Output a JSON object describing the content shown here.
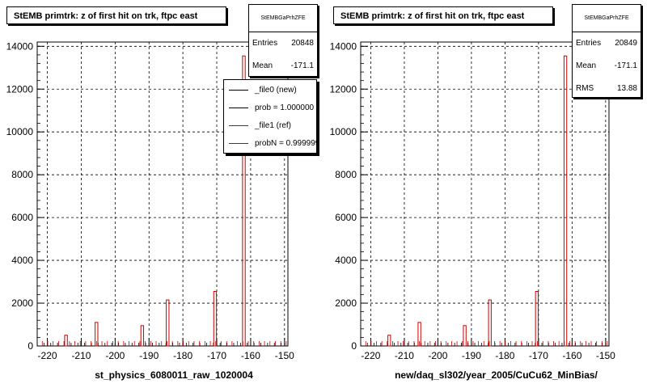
{
  "colors": {
    "new": "#000000",
    "ref": "#cc0000"
  },
  "chart_data": [
    {
      "type": "bar",
      "title": "StEMB primtrk: z of first hit on trk, ftpc east",
      "xlabel": "st_physics_6080011_raw_1020004",
      "ylabel": "",
      "xlim": [
        -223,
        -149
      ],
      "ylim": [
        0,
        14200
      ],
      "xticks": [
        -220,
        -210,
        -200,
        -190,
        -180,
        -170,
        -160,
        -150
      ],
      "yticks": [
        0,
        2000,
        4000,
        6000,
        8000,
        10000,
        12000,
        14000
      ],
      "grid": true,
      "stats": {
        "name": "StEMBGaPrhZFE",
        "entries_label": "Entries",
        "entries": "20848",
        "mean_label": "Mean",
        "mean": "-171.1"
      },
      "legend": {
        "position": "top-right",
        "entries": [
          {
            "label": "_file0 (new)",
            "color": "#000000"
          },
          {
            "label": "prob = 1.000000",
            "color": "#000000"
          },
          {
            "label": "_file1 (ref)",
            "color": "#cc0000"
          },
          {
            "label": "probN = 0.999999",
            "color": "#cc0000"
          }
        ]
      },
      "series": [
        {
          "name": "_file1 (ref)",
          "color": "#cc0000",
          "x": [
            -214.5,
            -205.5,
            -192,
            -184.5,
            -170.5,
            -162
          ],
          "values": [
            500,
            1100,
            950,
            2150,
            2550,
            13550
          ]
        }
      ]
    },
    {
      "type": "bar",
      "title": "StEMB primtrk: z of first hit on trk, ftpc east",
      "xlabel": "new/daq_sl302/year_2005/CuCu62_MinBias/",
      "ylabel": "",
      "xlim": [
        -223,
        -149
      ],
      "ylim": [
        0,
        14200
      ],
      "xticks": [
        -220,
        -210,
        -200,
        -190,
        -180,
        -170,
        -160,
        -150
      ],
      "yticks": [
        0,
        2000,
        4000,
        6000,
        8000,
        10000,
        12000,
        14000
      ],
      "grid": true,
      "stats": {
        "name": "StEMBGaPrhZFE",
        "entries_label": "Entries",
        "entries": "20849",
        "mean_label": "Mean",
        "mean": "-171.1",
        "rms_label": "RMS",
        "rms": "13.88"
      },
      "series": [
        {
          "name": "",
          "color": "#cc0000",
          "x": [
            -214.5,
            -205.5,
            -192,
            -184.5,
            -170.5,
            -162
          ],
          "values": [
            500,
            1100,
            950,
            2150,
            2550,
            13550
          ]
        }
      ]
    }
  ]
}
